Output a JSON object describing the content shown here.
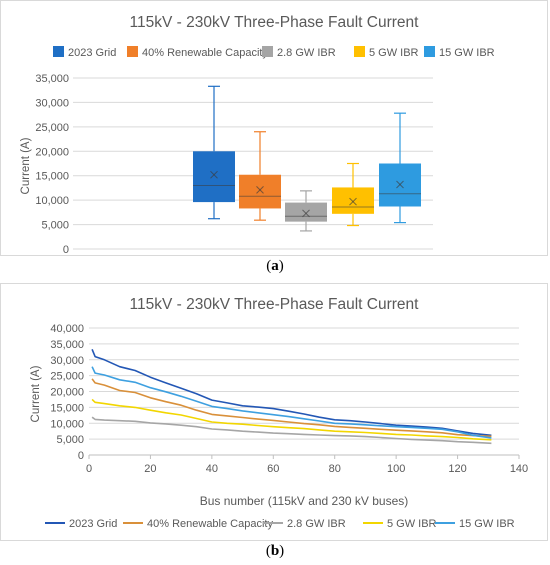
{
  "captions": {
    "a": "a",
    "b": "b"
  },
  "chart_data": [
    {
      "type": "box",
      "title": "115kV - 230kV Three-Phase Fault Current",
      "xlabel": "",
      "ylabel": "Current (A)",
      "ylim": [
        0,
        35000
      ],
      "yticks": [
        0,
        5000,
        10000,
        15000,
        20000,
        25000,
        30000,
        35000
      ],
      "ytick_labels": [
        "0",
        "5,000",
        "10,000",
        "15,000",
        "20,000",
        "25,000",
        "30,000",
        "35,000"
      ],
      "grid": true,
      "legend": "top",
      "series": [
        {
          "name": "2023 Grid",
          "color": "#1f6fc5",
          "min": 6200,
          "q1": 9600,
          "median": 13000,
          "q3": 20000,
          "max": 33300,
          "mean": 15200
        },
        {
          "name": "40% Renewable Capacity",
          "color": "#f07f29",
          "min": 5900,
          "q1": 8300,
          "median": 10800,
          "q3": 15200,
          "max": 24000,
          "mean": 12100
        },
        {
          "name": "2.8 GW IBR",
          "color": "#a5a5a5",
          "min": 3700,
          "q1": 5600,
          "median": 6700,
          "q3": 9500,
          "max": 11900,
          "mean": 7300
        },
        {
          "name": "5 GW IBR",
          "color": "#ffc000",
          "min": 4800,
          "q1": 7200,
          "median": 8600,
          "q3": 12600,
          "max": 17500,
          "mean": 9700
        },
        {
          "name": "15 GW IBR",
          "color": "#2e9be0",
          "min": 5400,
          "q1": 8700,
          "median": 11300,
          "q3": 17500,
          "max": 27800,
          "mean": 13200
        }
      ]
    },
    {
      "type": "line",
      "title": "115kV - 230kV Three-Phase Fault Current",
      "xlabel": "Bus number (115kV and 230 kV buses)",
      "ylabel": "Current (A)",
      "xlim": [
        0,
        140
      ],
      "ylim": [
        0,
        40000
      ],
      "xticks": [
        0,
        20,
        40,
        60,
        80,
        100,
        120,
        140
      ],
      "yticks": [
        0,
        5000,
        10000,
        15000,
        20000,
        25000,
        30000,
        35000,
        40000
      ],
      "ytick_labels": [
        "0",
        "5,000",
        "10,000",
        "15,000",
        "20,000",
        "25,000",
        "30,000",
        "35,000",
        "40,000"
      ],
      "grid": true,
      "legend": "bottom",
      "x": [
        1,
        2,
        5,
        10,
        15,
        20,
        25,
        30,
        35,
        40,
        45,
        50,
        55,
        60,
        65,
        70,
        75,
        80,
        85,
        90,
        95,
        100,
        105,
        110,
        115,
        120,
        125,
        131
      ],
      "series": [
        {
          "name": "2023 Grid",
          "color": "#2357b5",
          "values": [
            33300,
            31000,
            30000,
            27800,
            26600,
            24500,
            22700,
            21000,
            19300,
            17300,
            16400,
            15500,
            15100,
            14600,
            13800,
            12900,
            11900,
            11100,
            10800,
            10400,
            9900,
            9400,
            9100,
            8800,
            8400,
            7600,
            6800,
            6200
          ]
        },
        {
          "name": "40% Renewable Capacity",
          "color": "#d9903a",
          "values": [
            24000,
            22700,
            22000,
            20300,
            19700,
            18000,
            16800,
            15700,
            14100,
            12800,
            12300,
            11800,
            11300,
            10900,
            10400,
            9900,
            9500,
            9000,
            8700,
            8400,
            8100,
            7800,
            7600,
            7300,
            7000,
            6400,
            6100,
            5900
          ]
        },
        {
          "name": "2.8 GW IBR",
          "color": "#a6a6a6",
          "values": [
            11900,
            11200,
            11000,
            10800,
            10600,
            10100,
            9800,
            9400,
            8900,
            8200,
            7900,
            7500,
            7200,
            6900,
            6700,
            6500,
            6300,
            6100,
            6000,
            5800,
            5500,
            5200,
            4900,
            4700,
            4500,
            4200,
            4000,
            3700
          ]
        },
        {
          "name": "5 GW IBR",
          "color": "#f2d600",
          "values": [
            17500,
            16600,
            16200,
            15500,
            15000,
            14100,
            13300,
            12600,
            11500,
            10400,
            10000,
            9700,
            9300,
            8900,
            8600,
            8300,
            7900,
            7500,
            7300,
            7100,
            6800,
            6500,
            6300,
            6000,
            5800,
            5500,
            5100,
            4800
          ]
        },
        {
          "name": "15 GW IBR",
          "color": "#3ea0e0",
          "values": [
            27800,
            25800,
            25200,
            23700,
            22900,
            21200,
            19900,
            18500,
            16900,
            15300,
            14600,
            13900,
            13300,
            12700,
            12100,
            11400,
            10700,
            10000,
            9800,
            9500,
            9200,
            8900,
            8700,
            8400,
            8100,
            7300,
            6200,
            5400
          ]
        }
      ]
    }
  ]
}
